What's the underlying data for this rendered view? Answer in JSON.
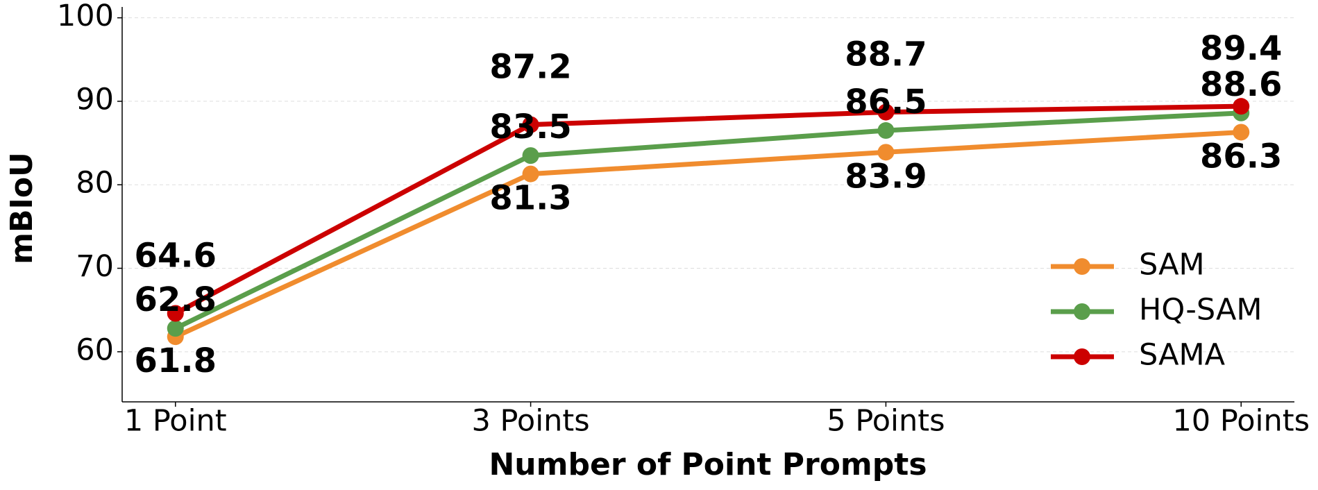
{
  "chart_data": {
    "type": "line",
    "x_label": "Number of Point Prompts",
    "y_label": "mBIoU",
    "categories": [
      "1 Point",
      "3 Points",
      "5 Points",
      "10 Points"
    ],
    "series": [
      {
        "name": "SAM",
        "color": "#f08c2e",
        "values": [
          61.8,
          81.3,
          83.9,
          86.3
        ]
      },
      {
        "name": "HQ-SAM",
        "color": "#5a9e4b",
        "values": [
          62.8,
          83.5,
          86.5,
          88.6
        ]
      },
      {
        "name": "SAMA",
        "color": "#cc0000",
        "values": [
          64.6,
          87.2,
          88.7,
          89.4
        ]
      }
    ],
    "ylim": [
      54,
      101.3
    ],
    "yticks": [
      60,
      70,
      80,
      90,
      100
    ],
    "grid": true,
    "legend": "lower right"
  }
}
